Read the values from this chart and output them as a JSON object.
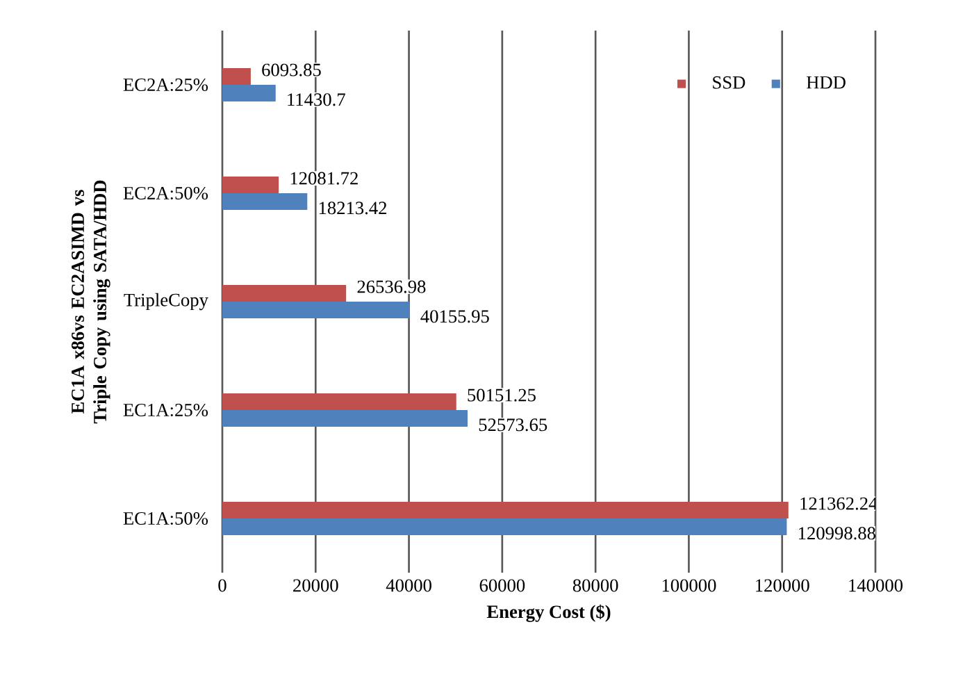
{
  "chart_data": {
    "type": "bar",
    "orientation": "horizontal",
    "xlabel": "Energy Cost ($)",
    "ylabel": "EC1A x86vs EC2ASIMD vs Triple Copy using SATA/HDD",
    "categories": [
      "EC2A:25%",
      "EC2A:50%",
      "TripleCopy",
      "EC1A:25%",
      "EC1A:50%"
    ],
    "series": [
      {
        "name": "SSD",
        "color": "#c0504d",
        "values": [
          6093.85,
          12081.72,
          26536.98,
          50151.25,
          121362.24
        ]
      },
      {
        "name": "HDD",
        "color": "#4f81bd",
        "values": [
          11430.7,
          18213.42,
          40155.95,
          52573.65,
          120998.88
        ]
      }
    ],
    "xlim": [
      0,
      140000
    ],
    "xticks": [
      0,
      20000,
      40000,
      60000,
      80000,
      100000,
      120000,
      140000
    ],
    "grid": "x",
    "legend": "top right",
    "data_labels": true
  }
}
